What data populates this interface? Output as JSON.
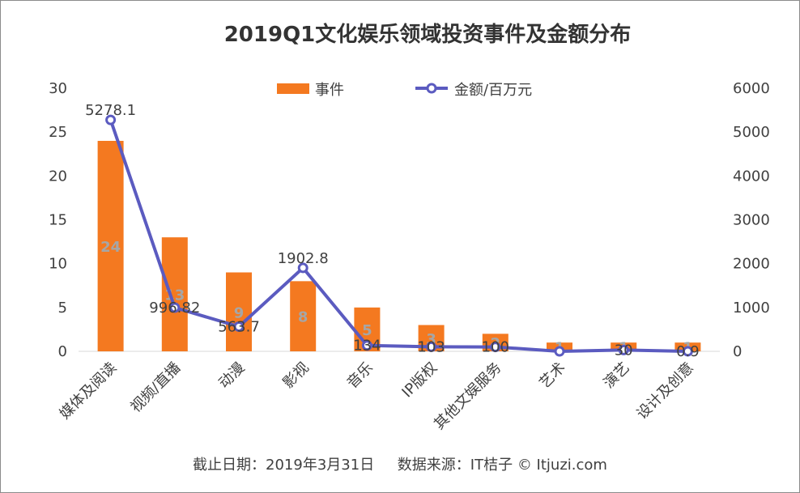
{
  "chart_data": {
    "type": "bar",
    "title": "2019Q1文化娱乐领域投资事件及金额分布",
    "categories": [
      "媒体及阅读",
      "视频/直播",
      "动漫",
      "影视",
      "音乐",
      "IP版权",
      "其他文娱服务",
      "艺术",
      "演艺",
      "设计及创意"
    ],
    "series": [
      {
        "name": "事件",
        "type": "bar",
        "axis": "left",
        "color": "#f47920",
        "values": [
          24,
          13,
          9,
          8,
          5,
          3,
          2,
          1,
          1,
          1
        ],
        "labels": [
          "24",
          "13",
          "9",
          "8",
          "5",
          "3",
          "2",
          "1",
          "1",
          "1"
        ]
      },
      {
        "name": "金额/百万元",
        "type": "line",
        "axis": "right",
        "color": "#5b5bc0",
        "values": [
          5278.1,
          996.82,
          563.7,
          1902.8,
          134,
          103,
          100,
          0,
          30,
          0.9
        ],
        "labels": [
          "5278.1",
          "996.82",
          "563.7",
          "1902.8",
          "134",
          "103",
          "100",
          "",
          "30",
          "0.9"
        ]
      }
    ],
    "y_left": {
      "min": 0,
      "max": 30,
      "ticks": [
        0,
        5,
        10,
        15,
        20,
        25,
        30
      ]
    },
    "y_right": {
      "min": 0,
      "max": 6000,
      "ticks": [
        0,
        1000,
        2000,
        3000,
        4000,
        5000,
        6000
      ]
    },
    "legend": {
      "position": "top-center",
      "entries": [
        "事件",
        "金额/百万元"
      ]
    },
    "grid": false,
    "source": "截止日期：2019年3月31日     数据来源：IT桔子 © Itjuzi.com"
  }
}
